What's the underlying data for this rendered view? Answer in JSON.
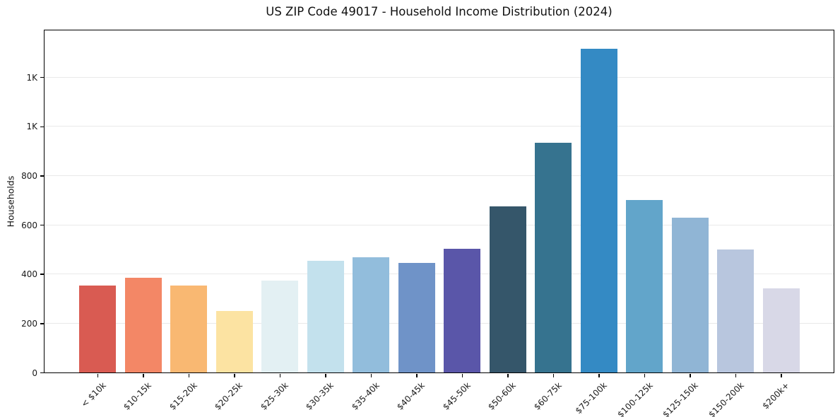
{
  "chart_data": {
    "type": "bar",
    "title": "US ZIP Code 49017 - Household Income Distribution (2024)",
    "xlabel": "",
    "ylabel": "Households",
    "categories": [
      "< $10k",
      "$10-15k",
      "$15-20k",
      "$20-25k",
      "$25-30k",
      "$30-35k",
      "$35-40k",
      "$40-45k",
      "$45-50k",
      "$50-60k",
      "$60-75k",
      "$75-100k",
      "$100-125k",
      "$125-150k",
      "$150-200k",
      "$200k+"
    ],
    "values": [
      352,
      385,
      353,
      250,
      374,
      453,
      467,
      444,
      503,
      676,
      933,
      1315,
      701,
      630,
      501,
      341
    ],
    "bar_colors": [
      "#d95b52",
      "#f38766",
      "#f9b872",
      "#fce3a2",
      "#e3f0f3",
      "#c3e1ed",
      "#92bddc",
      "#6f93c8",
      "#5a56a9",
      "#35566a",
      "#36738f",
      "#348ac4",
      "#62a5ca",
      "#90b5d5",
      "#b8c6de",
      "#d8d8e7"
    ],
    "yticks": {
      "values": [
        0,
        200,
        400,
        600,
        800,
        1000,
        1200
      ],
      "labels": [
        "0",
        "200",
        "400",
        "600",
        "800",
        "1K",
        "1K"
      ]
    },
    "ylim": [
      0,
      1390
    ],
    "grid": true,
    "grid_color": "#e9e9e9",
    "spine_color": "#000000",
    "background": "#ffffff",
    "legend": "none"
  }
}
